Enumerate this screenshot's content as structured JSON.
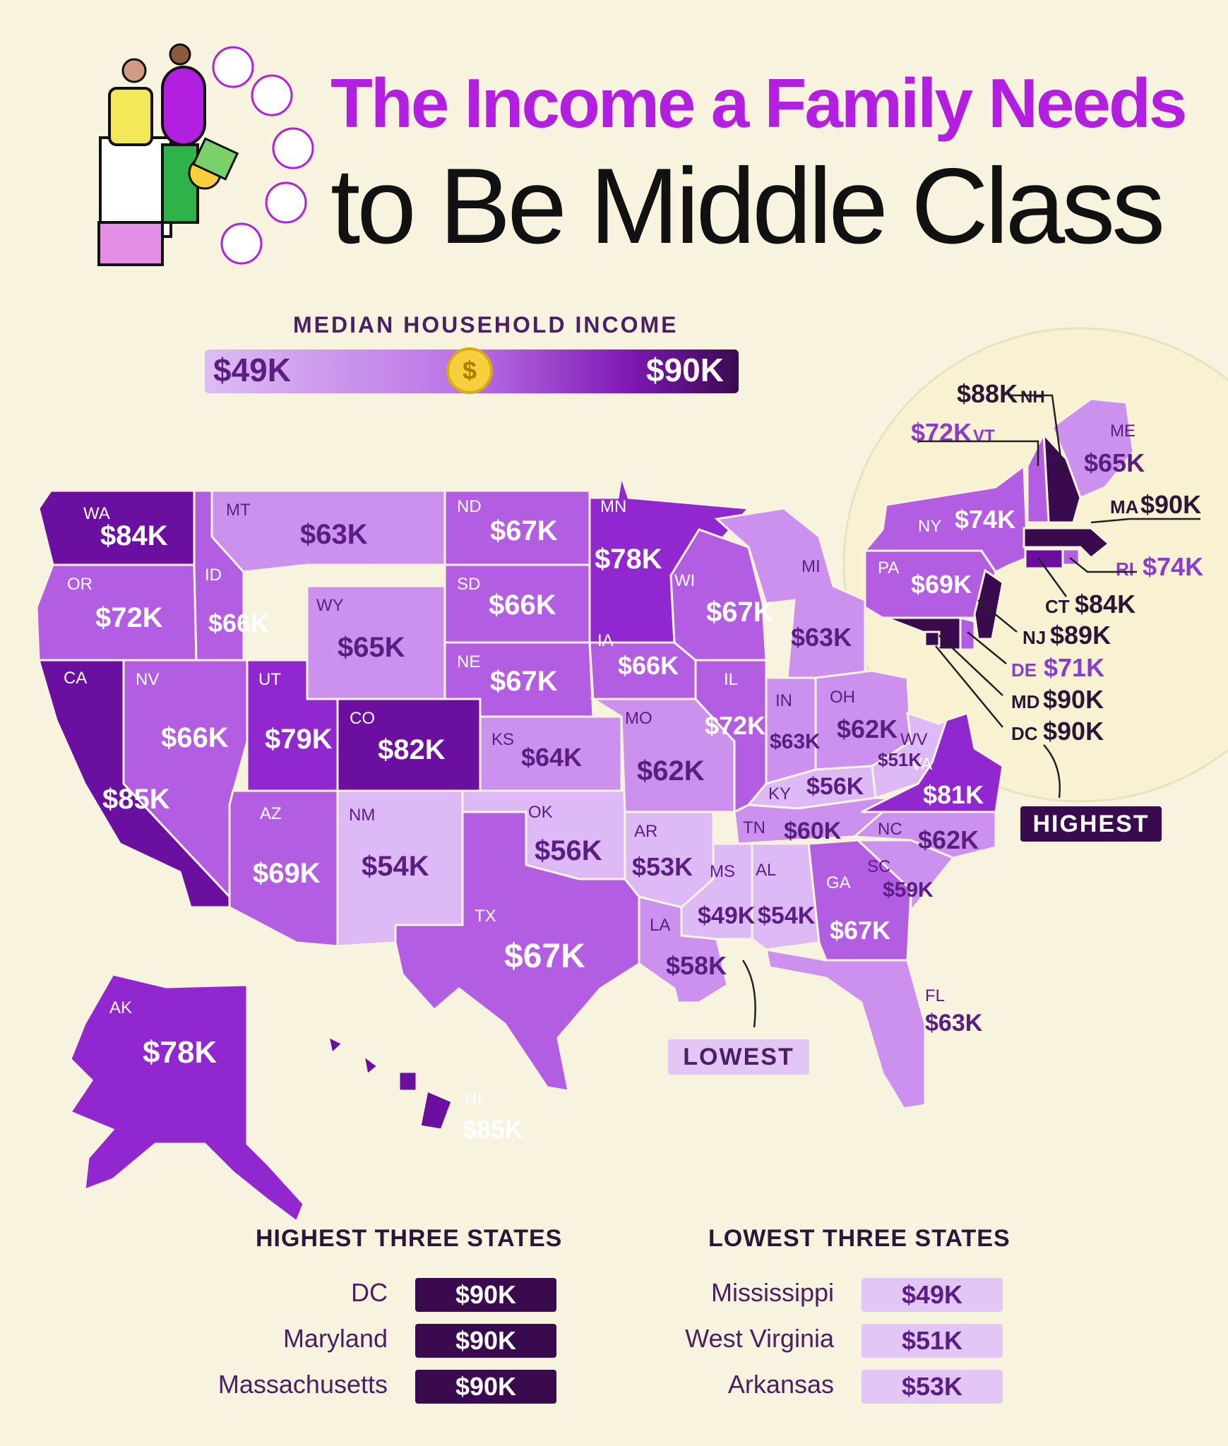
{
  "title": {
    "line1": "The Income a Family Needs",
    "line2": "to Be Middle Class"
  },
  "legend": {
    "title": "MEDIAN HOUSEHOLD INCOME",
    "min": "$49K",
    "max": "$90K",
    "coin": "$"
  },
  "colors": {
    "lightest": "#ddbaf5",
    "light": "#cc90ef",
    "mid": "#b35de2",
    "deep": "#9027cf",
    "darker": "#6a0fa0",
    "darkest": "#3a0a4e",
    "title_accent": "#b21fe0"
  },
  "states": {
    "WA": {
      "abbr": "WA",
      "value": "$84K"
    },
    "OR": {
      "abbr": "OR",
      "value": "$72K"
    },
    "CA": {
      "abbr": "CA",
      "value": "$85K"
    },
    "NV": {
      "abbr": "NV",
      "value": "$66K"
    },
    "ID": {
      "abbr": "ID",
      "value": "$66K"
    },
    "MT": {
      "abbr": "MT",
      "value": "$63K"
    },
    "WY": {
      "abbr": "WY",
      "value": "$65K"
    },
    "UT": {
      "abbr": "UT",
      "value": "$79K"
    },
    "CO": {
      "abbr": "CO",
      "value": "$82K"
    },
    "AZ": {
      "abbr": "AZ",
      "value": "$69K"
    },
    "NM": {
      "abbr": "NM",
      "value": "$54K"
    },
    "ND": {
      "abbr": "ND",
      "value": "$67K"
    },
    "SD": {
      "abbr": "SD",
      "value": "$66K"
    },
    "NE": {
      "abbr": "NE",
      "value": "$67K"
    },
    "KS": {
      "abbr": "KS",
      "value": "$64K"
    },
    "OK": {
      "abbr": "OK",
      "value": "$56K"
    },
    "TX": {
      "abbr": "TX",
      "value": "$67K"
    },
    "MN": {
      "abbr": "MN",
      "value": "$78K"
    },
    "IA": {
      "abbr": "IA",
      "value": "$66K"
    },
    "MO": {
      "abbr": "MO",
      "value": "$62K"
    },
    "AR": {
      "abbr": "AR",
      "value": "$53K"
    },
    "LA": {
      "abbr": "LA",
      "value": "$58K"
    },
    "WI": {
      "abbr": "WI",
      "value": "$67K"
    },
    "IL": {
      "abbr": "IL",
      "value": "$72K"
    },
    "MI": {
      "abbr": "MI",
      "value": "$63K"
    },
    "IN": {
      "abbr": "IN",
      "value": "$63K"
    },
    "OH": {
      "abbr": "OH",
      "value": "$62K"
    },
    "KY": {
      "abbr": "KY",
      "value": "$56K"
    },
    "TN": {
      "abbr": "TN",
      "value": "$60K"
    },
    "MS": {
      "abbr": "MS",
      "value": "$49K"
    },
    "AL": {
      "abbr": "AL",
      "value": "$54K"
    },
    "GA": {
      "abbr": "GA",
      "value": "$67K"
    },
    "FL": {
      "abbr": "FL",
      "value": "$63K"
    },
    "SC": {
      "abbr": "SC",
      "value": "$59K"
    },
    "NC": {
      "abbr": "NC",
      "value": "$62K"
    },
    "VA": {
      "abbr": "VA",
      "value": "$81K"
    },
    "WV": {
      "abbr": "WV",
      "value": "$51K"
    },
    "PA": {
      "abbr": "PA",
      "value": "$69K"
    },
    "NY": {
      "abbr": "NY",
      "value": "$74K"
    },
    "ME": {
      "abbr": "ME",
      "value": "$65K"
    },
    "NH": {
      "abbr": "NH",
      "value": "$88K"
    },
    "VT": {
      "abbr": "VT",
      "value": "$72K"
    },
    "MA": {
      "abbr": "MA",
      "value": "$90K"
    },
    "RI": {
      "abbr": "RI",
      "value": "$74K"
    },
    "CT": {
      "abbr": "CT",
      "value": "$84K"
    },
    "NJ": {
      "abbr": "NJ",
      "value": "$89K"
    },
    "DE": {
      "abbr": "DE",
      "value": "$71K"
    },
    "MD": {
      "abbr": "MD",
      "value": "$90K"
    },
    "DC": {
      "abbr": "DC",
      "value": "$90K"
    },
    "AK": {
      "abbr": "AK",
      "value": "$78K"
    },
    "HI": {
      "abbr": "HI",
      "value": "$85K"
    }
  },
  "callouts": {
    "highest": "HIGHEST",
    "lowest": "LOWEST"
  },
  "highest_three": {
    "heading": "HIGHEST THREE STATES",
    "rows": [
      {
        "name": "DC",
        "value": "$90K"
      },
      {
        "name": "Maryland",
        "value": "$90K"
      },
      {
        "name": "Massachusetts",
        "value": "$90K"
      }
    ]
  },
  "lowest_three": {
    "heading": "LOWEST THREE STATES",
    "rows": [
      {
        "name": "Mississippi",
        "value": "$49K"
      },
      {
        "name": "West Virginia",
        "value": "$51K"
      },
      {
        "name": "Arkansas",
        "value": "$53K"
      }
    ]
  }
}
